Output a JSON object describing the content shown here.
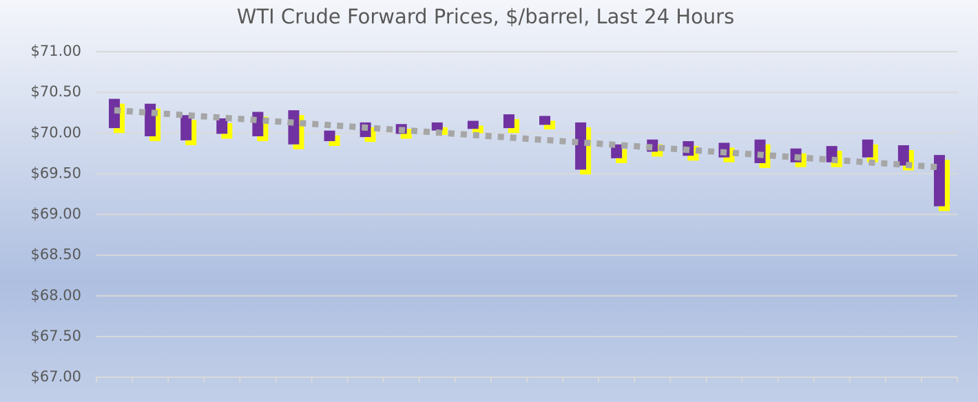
{
  "chart_data": {
    "type": "candlestick",
    "title": "WTI Crude Forward Prices, $/barrel, Last 24 Hours",
    "categories": [
      null,
      null,
      null,
      null,
      null,
      null,
      null,
      null,
      null,
      null,
      null,
      null,
      null,
      null,
      null,
      null,
      null,
      null,
      null,
      null,
      null,
      null,
      null,
      null
    ],
    "open": [
      70.42,
      70.36,
      70.22,
      70.18,
      70.26,
      70.28,
      70.03,
      70.13,
      70.11,
      70.13,
      70.15,
      70.23,
      70.21,
      70.13,
      69.86,
      69.92,
      69.9,
      69.88,
      69.92,
      69.81,
      69.84,
      69.92,
      69.85,
      69.73
    ],
    "close": [
      70.06,
      69.96,
      69.91,
      69.99,
      69.96,
      69.86,
      69.9,
      69.95,
      69.99,
      70.03,
      70.05,
      70.06,
      70.1,
      69.55,
      69.69,
      69.77,
      69.72,
      69.7,
      69.63,
      69.64,
      69.64,
      69.7,
      69.6,
      69.1
    ],
    "color": "#7030a0",
    "shadow_color": "#ffff00",
    "trendline": {
      "start": 70.28,
      "end": 69.58,
      "color": "#a6a6a6"
    },
    "ylim": [
      67,
      71
    ],
    "yticks": [
      {
        "value": 67,
        "label": "$67.00"
      },
      {
        "value": 67.5,
        "label": "$67.50"
      },
      {
        "value": 68,
        "label": "$68.00"
      },
      {
        "value": 68.5,
        "label": "$68.50"
      },
      {
        "value": 69,
        "label": "$69.00"
      },
      {
        "value": 69.5,
        "label": "$69.50"
      },
      {
        "value": 70,
        "label": "$70.00"
      },
      {
        "value": 70.5,
        "label": "$70.50"
      },
      {
        "value": 71,
        "label": "$71.00"
      }
    ],
    "grid": true
  }
}
